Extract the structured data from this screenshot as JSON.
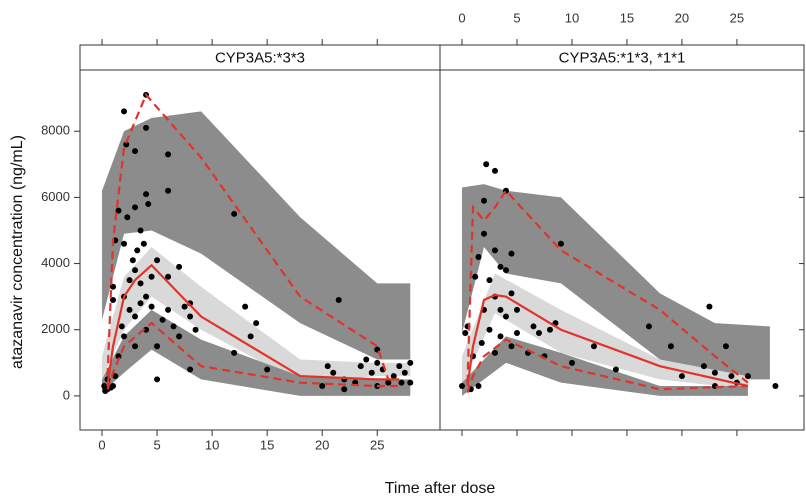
{
  "axis_labels": {
    "x": "Time after dose",
    "y": "atazanavir concentration (ng/mL)"
  },
  "chart_data": [
    {
      "type": "scatter",
      "title": "CYP3A5:*3*3",
      "xaxis_side": "bottom",
      "point_color": "#000000",
      "xlim": [
        -2,
        30.7
      ],
      "ylim": [
        -1030,
        9850
      ],
      "xticks": [
        0,
        5,
        10,
        15,
        20,
        25
      ],
      "yticks": [
        0,
        2000,
        4000,
        6000,
        8000
      ],
      "x": [
        0.2,
        0.3,
        0.5,
        0.5,
        0.8,
        1,
        1,
        1,
        1.2,
        1.2,
        1.5,
        1.5,
        1.8,
        2,
        2,
        2,
        2,
        2.2,
        2.3,
        2.5,
        2.5,
        2.8,
        3,
        3,
        3,
        3,
        3,
        3.2,
        3.5,
        3.5,
        3.5,
        3.8,
        4,
        4,
        4,
        4,
        4,
        4.2,
        4.5,
        4.5,
        5,
        5,
        5,
        5.5,
        6,
        6,
        6,
        6,
        6.5,
        7,
        7,
        7.5,
        8,
        8,
        8,
        8.5,
        12,
        12,
        13,
        13.5,
        14,
        15,
        20,
        20.5,
        21,
        21.5,
        22,
        22,
        23,
        23.5,
        24,
        24.5,
        25,
        25,
        25.5,
        25,
        26,
        26.5,
        27,
        27.2,
        27.5,
        28,
        28
      ],
      "y": [
        300,
        150,
        500,
        200,
        250,
        300,
        2900,
        3300,
        600,
        4700,
        1200,
        5600,
        2100,
        4600,
        3000,
        1800,
        8600,
        7600,
        5400,
        3500,
        2600,
        4100,
        3800,
        7400,
        5700,
        2400,
        1500,
        4400,
        5000,
        3400,
        2800,
        4600,
        9100,
        8100,
        6100,
        3000,
        2000,
        5800,
        3600,
        2700,
        500,
        1500,
        4100,
        2300,
        7300,
        6200,
        3600,
        2600,
        2100,
        3900,
        1800,
        2700,
        2800,
        2400,
        800,
        2000,
        5500,
        1300,
        2700,
        1800,
        2200,
        800,
        300,
        900,
        700,
        2900,
        200,
        500,
        400,
        900,
        1100,
        700,
        1400,
        1000,
        800,
        300,
        400,
        600,
        900,
        400,
        700,
        1000,
        400
      ],
      "bands": [
        {
          "color": "#8c8c8c",
          "x": [
            0,
            2,
            4.5,
            9,
            18,
            25,
            28
          ],
          "lower": [
            2300,
            4900,
            5000,
            4300,
            2200,
            1100,
            1100
          ],
          "upper": [
            6200,
            8000,
            8400,
            8600,
            5400,
            3400,
            3400
          ]
        },
        {
          "color": "#d9d9d9",
          "x": [
            0,
            2,
            4.5,
            9,
            18,
            25,
            28
          ],
          "lower": [
            500,
            2000,
            3000,
            2000,
            400,
            600,
            600
          ],
          "upper": [
            1200,
            3600,
            4500,
            3300,
            1100,
            1000,
            1000
          ]
        },
        {
          "color": "#8c8c8c",
          "x": [
            0,
            2,
            4.5,
            9,
            18,
            25,
            28
          ],
          "lower": [
            100,
            700,
            1400,
            500,
            0,
            0,
            0
          ],
          "upper": [
            500,
            1800,
            2600,
            1700,
            600,
            500,
            500
          ]
        }
      ],
      "lines": [
        {
          "color": "#e0342b",
          "dashed": false,
          "x": [
            0.5,
            1,
            2,
            3,
            4.5,
            9,
            14,
            18,
            25,
            27
          ],
          "values": [
            300,
            1500,
            3000,
            3500,
            3950,
            2400,
            1400,
            600,
            500,
            500
          ]
        },
        {
          "color": "#e0342b",
          "dashed": true,
          "x": [
            0.5,
            1,
            2,
            4,
            9,
            18,
            25,
            26
          ],
          "values": [
            600,
            4700,
            7500,
            9100,
            7200,
            3000,
            1500,
            500
          ]
        },
        {
          "color": "#e0342b",
          "dashed": true,
          "x": [
            0.5,
            1,
            2,
            4.5,
            9,
            18,
            25,
            27
          ],
          "values": [
            200,
            700,
            1500,
            2200,
            900,
            400,
            300,
            300
          ]
        }
      ]
    },
    {
      "type": "scatter",
      "title": "CYP3A5:*1*3, *1*1",
      "xaxis_side": "top",
      "point_color": "#000000",
      "xlim": [
        -2,
        31.1
      ],
      "ylim": [
        -1030,
        9850
      ],
      "xticks": [
        0,
        5,
        10,
        15,
        20,
        25
      ],
      "yticks": [
        0,
        2000,
        4000,
        6000,
        8000
      ],
      "x": [
        0,
        0.3,
        0.5,
        0.8,
        1,
        1.2,
        1.5,
        1.5,
        1.8,
        2,
        2,
        2,
        2.2,
        2.5,
        2.5,
        3,
        3,
        3,
        3,
        3.5,
        3.5,
        3.5,
        4,
        4,
        4,
        4.5,
        4.5,
        4.5,
        5,
        5,
        6,
        6.5,
        7,
        7.5,
        8,
        8.5,
        9,
        10,
        12,
        14,
        17,
        19,
        20,
        22,
        22.5,
        23,
        23,
        24,
        24.5,
        25,
        26,
        28.5
      ],
      "y": [
        300,
        1900,
        2100,
        200,
        1200,
        3600,
        300,
        4200,
        1600,
        2600,
        4900,
        5900,
        7000,
        3500,
        2000,
        6800,
        4400,
        3000,
        1300,
        3900,
        2600,
        1800,
        6200,
        3800,
        2400,
        4300,
        3100,
        1500,
        2600,
        1900,
        1300,
        2100,
        1900,
        1200,
        2000,
        2200,
        4600,
        1000,
        1500,
        800,
        2100,
        1500,
        600,
        900,
        2700,
        700,
        300,
        1500,
        600,
        400,
        600,
        300
      ],
      "bands": [
        {
          "color": "#8c8c8c",
          "x": [
            0,
            2,
            4,
            9,
            18,
            23,
            28
          ],
          "lower": [
            1900,
            4500,
            3700,
            3400,
            1100,
            500,
            500
          ],
          "upper": [
            6300,
            6400,
            6200,
            6000,
            3100,
            2200,
            2100
          ]
        },
        {
          "color": "#d9d9d9",
          "x": [
            0,
            3,
            9,
            18,
            26
          ],
          "lower": [
            300,
            2500,
            1300,
            500,
            200
          ],
          "upper": [
            1200,
            3700,
            2600,
            1100,
            600
          ]
        },
        {
          "color": "#8c8c8c",
          "x": [
            0,
            4,
            9,
            18,
            26
          ],
          "lower": [
            0,
            1000,
            400,
            0,
            0
          ],
          "upper": [
            400,
            1800,
            1300,
            300,
            300
          ]
        }
      ],
      "lines": [
        {
          "color": "#e0342b",
          "dashed": false,
          "x": [
            0.5,
            1,
            2,
            3,
            4,
            9,
            18,
            26
          ],
          "values": [
            300,
            1500,
            2900,
            3050,
            3000,
            2000,
            900,
            300
          ]
        },
        {
          "color": "#e0342b",
          "dashed": true,
          "x": [
            0.5,
            1,
            2,
            3,
            4,
            9,
            18,
            23,
            26
          ],
          "values": [
            400,
            5700,
            5300,
            5700,
            6200,
            4400,
            2600,
            1200,
            400
          ]
        },
        {
          "color": "#e0342b",
          "dashed": true,
          "x": [
            0.5,
            1,
            2,
            4,
            9,
            18,
            26
          ],
          "values": [
            100,
            600,
            1200,
            1700,
            900,
            200,
            300
          ]
        }
      ]
    }
  ]
}
